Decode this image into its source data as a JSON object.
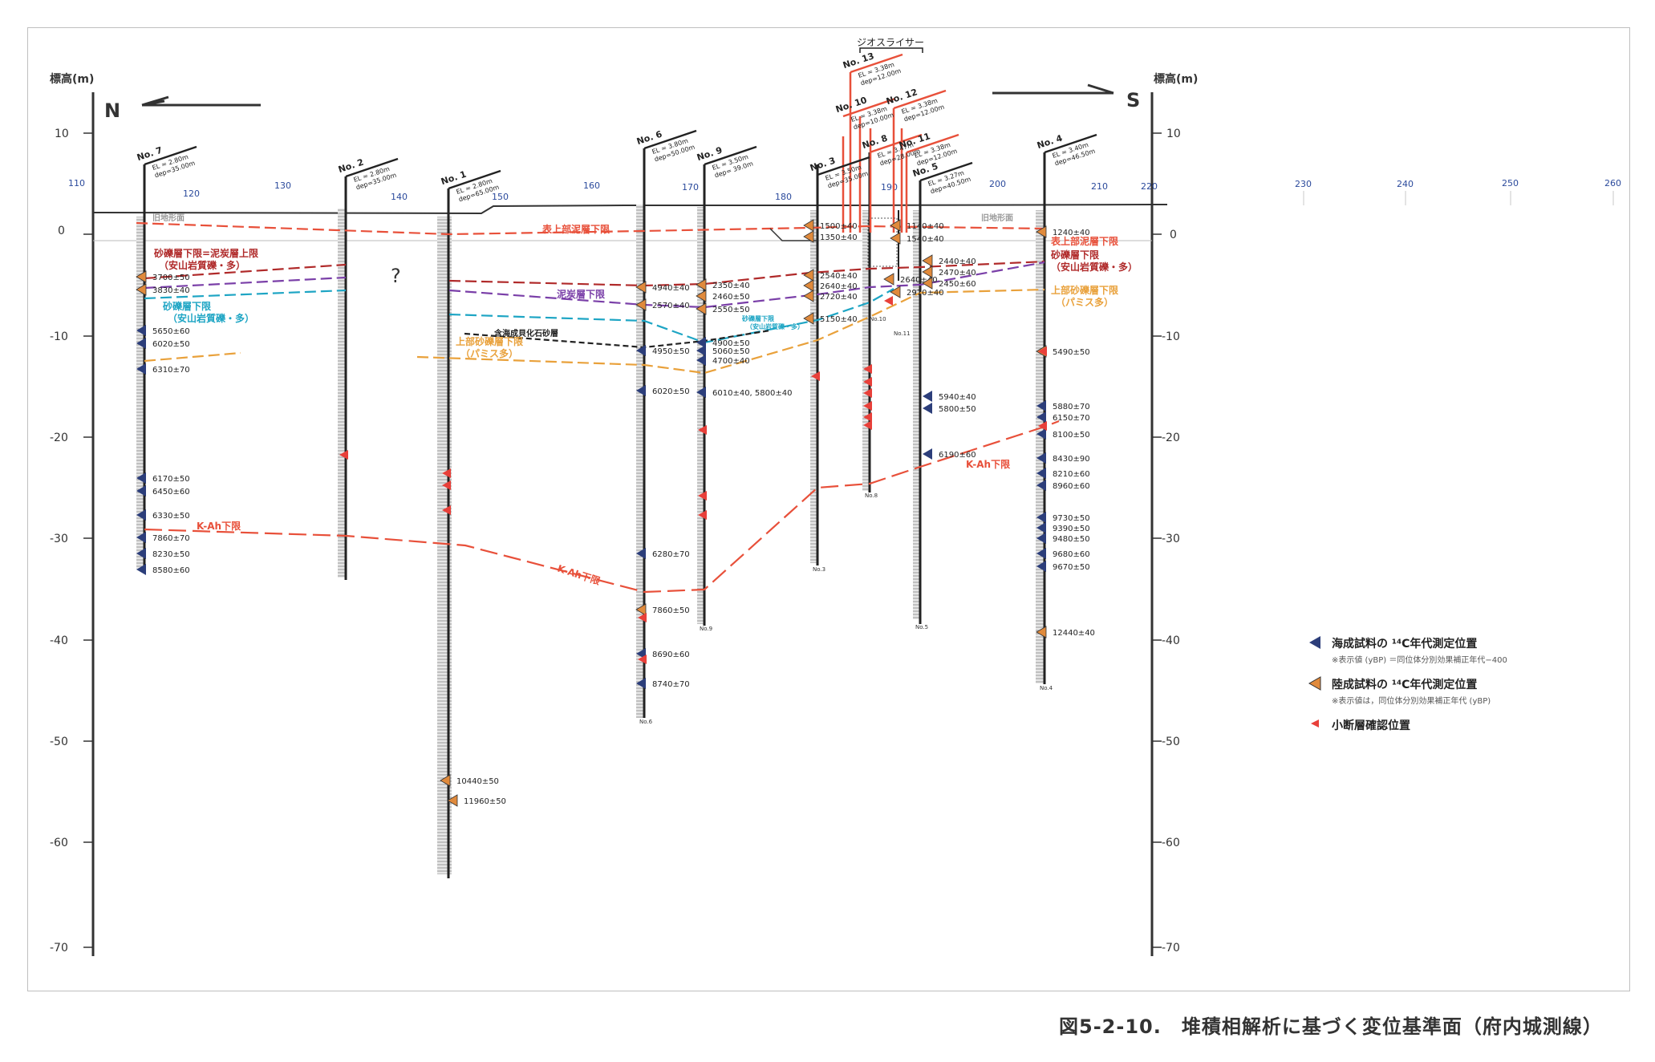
{
  "caption": "図5-2-10.　堆積相解析に基づく変位基準面（府内城測線）",
  "axis": {
    "left_label": "標高(m)",
    "right_label": "標高(m)",
    "left_ticks": [
      "10",
      "0",
      "-10",
      "-20",
      "-30",
      "-40",
      "-50",
      "-60",
      "-70"
    ],
    "right_ticks": [
      "10",
      "0",
      "-10",
      "-20",
      "-30",
      "-40",
      "-50",
      "-60",
      "-70"
    ],
    "distance_ticks": [
      "110",
      "120",
      "130",
      "140",
      "150",
      "160",
      "170",
      "180",
      "190",
      "200",
      "210",
      "220",
      "230",
      "240",
      "250",
      "260"
    ],
    "north": "N",
    "south": "S"
  },
  "geo_riser": "ジオスライサー",
  "boreholes": [
    {
      "id": "No. 7",
      "el": "EL = 2.80m",
      "dep": "dep=35.00m",
      "foot": ""
    },
    {
      "id": "No. 2",
      "el": "EL = 2.80m",
      "dep": "dep=35.00m",
      "foot": ""
    },
    {
      "id": "No. 1",
      "el": "EL = 2.80m",
      "dep": "dep=65.00m",
      "foot": ""
    },
    {
      "id": "No. 6",
      "el": "EL = 3.80m",
      "dep": "dep=50.00m",
      "foot": "No.6"
    },
    {
      "id": "No. 9",
      "el": "EL = 3.50m",
      "dep": "dep= 39.0m",
      "foot": "No.9"
    },
    {
      "id": "No. 3",
      "el": "EL = 3.50m",
      "dep": "dep=35.00m",
      "foot": "No.3"
    },
    {
      "id": "No. 8",
      "el": "EL = 3.47m",
      "dep": "dep=28.00m",
      "foot": "No.8"
    },
    {
      "id": "No. 5",
      "el": "EL = 3.27m",
      "dep": "dep=40.50m",
      "foot": "No.5"
    },
    {
      "id": "No. 4",
      "el": "EL = 3.40m",
      "dep": "dep=46.50m",
      "foot": "No.4"
    },
    {
      "id": "No. 13",
      "el": "EL = 3.38m",
      "dep": "dep=12.00m",
      "foot": ""
    },
    {
      "id": "No. 10",
      "el": "EL = 3.38m",
      "dep": "dep=10.00m",
      "foot": "No.10"
    },
    {
      "id": "No. 12",
      "el": "EL = 3.38m",
      "dep": "dep=12.00m",
      "foot": ""
    },
    {
      "id": "No. 11",
      "el": "EL = 3.38m",
      "dep": "dep=12.00m",
      "foot": "No.11"
    }
  ],
  "horizons": [
    {
      "label": "表上部泥層下限",
      "color": "#e8503a"
    },
    {
      "label": "砂礫層下限=泥炭層上限\n（安山岩質礫・多）",
      "color": "#b02a2a"
    },
    {
      "label": "泥炭層下限",
      "color": "#7a3fa8"
    },
    {
      "label": "砂礫層下限\n（安山岩質礫・多）",
      "color": "#1ea5c4"
    },
    {
      "label": "上部砂礫層下限\n（パミス多）",
      "color": "#e9a13b"
    },
    {
      "label": "含海成貝化石砂層",
      "color": "#222222"
    },
    {
      "label": "K-Ah下限",
      "color": "#e8503a"
    },
    {
      "label": "表上部泥層下限",
      "color": "#e8503a"
    },
    {
      "label": "砂礫層下限\n（安山岩質礫・多）",
      "color": "#b02a2a"
    },
    {
      "label": "上部砂礫層下限\n（パミス多）",
      "color": "#e9a13b"
    },
    {
      "label": "K-Ah下限",
      "color": "#e8503a"
    },
    {
      "label": "K-Ah下限",
      "color": "#e8503a"
    },
    {
      "label": "砂礫層下限\n（安山岩質礫・多）",
      "color": "#1ea5c4"
    },
    {
      "label": "旧地形面",
      "color": "#999999"
    },
    {
      "label": "旧地形面",
      "color": "#999999"
    },
    {
      "label": "?",
      "color": "#333333"
    }
  ],
  "dates": {
    "no7": [
      "3700±50",
      "3830±40",
      "5650±60",
      "6020±50",
      "6310±70",
      "6170±50",
      "6450±60",
      "6330±50",
      "7860±70",
      "8230±50",
      "8580±60"
    ],
    "no1": [
      "10440±50",
      "11960±50"
    ],
    "no6": [
      "4940±40",
      "2570±40",
      "4950±50",
      "6020±50",
      "6280±70",
      "7860±50",
      "8690±60",
      "8740±70"
    ],
    "no9": [
      "2350±40",
      "2460±50",
      "2550±50",
      "4900±50",
      "5060±50",
      "4700±40",
      "6010±40,  5800±40"
    ],
    "no3": [
      "1500±40",
      "1350±40",
      "2540±40",
      "2640±40",
      "2720±40",
      "5150±40"
    ],
    "no11": [
      "1140±40",
      "1540±40",
      "2640±40",
      "2970±40"
    ],
    "no5": [
      "2440±40",
      "2470±40",
      "2450±60",
      "5940±40",
      "5800±50",
      "6190±60"
    ],
    "no4": [
      "1240±40",
      "5490±50",
      "5880±70",
      "6150±70",
      "8100±50",
      "8430±90",
      "8210±60",
      "8960±60",
      "9730±50",
      "9390±50",
      "9480±50",
      "9680±60",
      "9670±50",
      "12440±40"
    ]
  },
  "legend": {
    "marine": "海成試料の ¹⁴C年代測定位置",
    "marine_note": "※表示値 (yBP) ＝同位体分別効果補正年代−400",
    "terrestrial": "陸成試料の ¹⁴C年代測定位置",
    "terrestrial_note": "※表示値は，同位体分別効果補正年代 (yBP)",
    "fault": "小断層確認位置"
  },
  "colors": {
    "marine": "#2c3e7a",
    "terrestrial": "#e08a3c",
    "fault": "#e8403a",
    "axis": "#333333"
  }
}
